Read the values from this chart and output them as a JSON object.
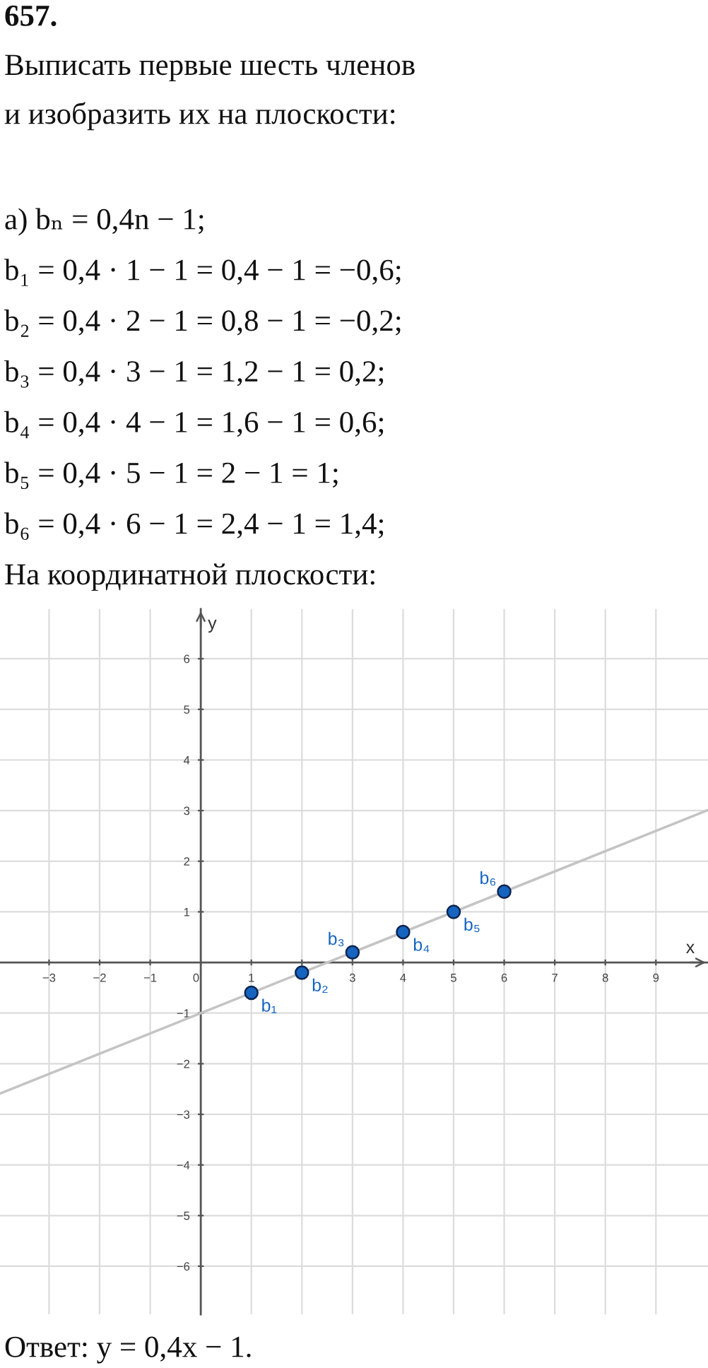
{
  "chart_data": {
    "type": "scatter",
    "title": "657.",
    "subtitle": "Выписать первые шесть членов\nи изобразить их на плоскости:",
    "xlabel": "x",
    "ylabel": "y",
    "x": [
      1,
      2,
      3,
      4,
      5,
      6
    ],
    "series": [
      {
        "values": [
          -0.6,
          -0.2,
          0.2,
          0.6,
          1,
          1.4
        ],
        "color": "#1565c0"
      },
      {
        "type": "line",
        "x": [
          -3.97,
          10.03
        ],
        "values": [
          -2.59,
          3.01
        ],
        "color": "#c4c4c4"
      }
    ],
    "xlim": [
      -3.97,
      10.03
    ],
    "ylim": [
      -6.95,
      6.98
    ],
    "xticks": [
      {
        "value": -3,
        "label": "−3"
      },
      {
        "value": -2,
        "label": "−2"
      },
      {
        "value": -1,
        "label": "−1"
      },
      0,
      1,
      {
        "value": 2,
        "label": null
      },
      3,
      4,
      5,
      6,
      7,
      8,
      9
    ],
    "yticks": [
      {
        "value": -6,
        "label": "−6"
      },
      {
        "value": -5,
        "label": "−5"
      },
      {
        "value": -4,
        "label": "−4"
      },
      {
        "value": -3,
        "label": "−3"
      },
      {
        "value": -2,
        "label": "−2"
      },
      {
        "value": -1,
        "label": "−1"
      },
      1,
      2,
      3,
      4,
      5,
      6
    ],
    "grid": true,
    "line_style": "solid",
    "annotations": [
      "а) bₙ = 0,4n − 1;",
      "b₁ = 0,4 · 1 − 1 = 0,4 − 1 = −0,6;",
      "b₂ = 0,4 · 2 − 1 = 0,8 − 1 = −0,2;",
      "b₃ = 0,4 · 3 − 1 = 1,2 − 1 = 0,2;",
      "b₄ = 0,4 · 4 − 1 = 1,6 − 1 = 0,6;",
      "b₅ = 0,4 · 5 − 1 = 2 − 1 = 1;",
      "b₆ = 0,4 · 6 − 1 = 2,4 − 1 = 1,4;",
      "На координатной плоскости:",
      {
        "text": "b₁",
        "x": 1,
        "y": -0.6
      },
      {
        "text": "b₂",
        "x": 2,
        "y": -0.2
      },
      {
        "text": "b₃",
        "x": 3,
        "y": 0.2
      },
      {
        "text": "b₄",
        "x": 4,
        "y": 0.6
      },
      {
        "text": "b₅",
        "x": 5,
        "y": 1
      },
      {
        "text": "b₆",
        "x": 6,
        "y": 1.4
      },
      "Ответ: y = 0,4x − 1."
    ]
  }
}
